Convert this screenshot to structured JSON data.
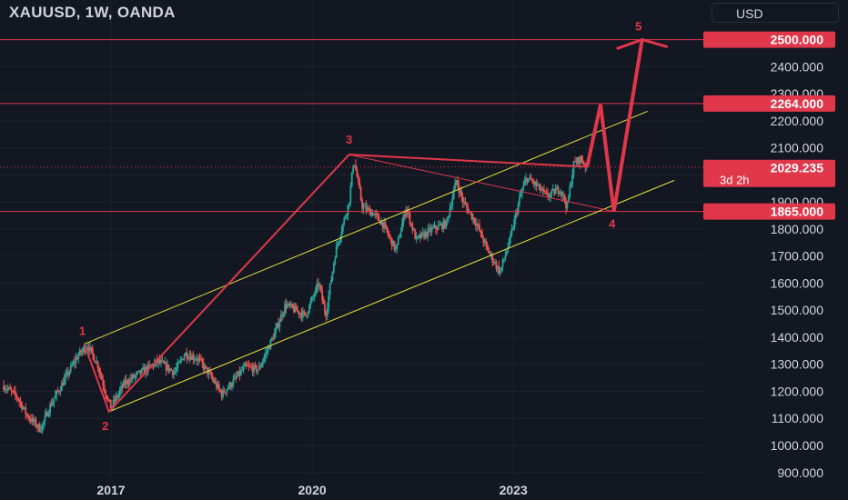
{
  "header": {
    "title": "XAUUSD, 1W, OANDA",
    "currency": "USD"
  },
  "colors": {
    "background": "#131722",
    "grid": "#1e222d",
    "up": "#26a69a",
    "down": "#ef5350",
    "wave": "#e0374b",
    "channel": "#e8e23b",
    "level": "#e0374b"
  },
  "chart_data": {
    "type": "candlestick",
    "symbol": "XAUUSD",
    "timeframe": "1W",
    "source": "OANDA",
    "y_axis": {
      "ticks": [
        900,
        1000,
        1100,
        1200,
        1300,
        1400,
        1500,
        1600,
        1700,
        1800,
        1900,
        2000,
        2100,
        2200,
        2300,
        2400
      ],
      "tick_labels": [
        "900.000",
        "1000.000",
        "1100.000",
        "1200.000",
        "1300.000",
        "1400.000",
        "1500.000",
        "1600.000",
        "1700.000",
        "1800.000",
        "1900.000",
        "2000.000",
        "2100.000",
        "2200.000",
        "2300.000",
        "2400.000"
      ],
      "range": [
        860,
        2560
      ],
      "side": "right"
    },
    "x_axis": {
      "range": [
        2015.4,
        2025.2
      ],
      "ticks": [
        2017,
        2020,
        2023
      ],
      "tick_labels": [
        "2017",
        "2020",
        "2023"
      ]
    },
    "price_path": [
      [
        2015.4,
        1220
      ],
      [
        2015.6,
        1180
      ],
      [
        2015.75,
        1110
      ],
      [
        2015.95,
        1060
      ],
      [
        2016.1,
        1150
      ],
      [
        2016.3,
        1240
      ],
      [
        2016.5,
        1330
      ],
      [
        2016.65,
        1370
      ],
      [
        2016.8,
        1300
      ],
      [
        2016.95,
        1170
      ],
      [
        2017.0,
        1140
      ],
      [
        2017.2,
        1230
      ],
      [
        2017.45,
        1270
      ],
      [
        2017.7,
        1310
      ],
      [
        2017.95,
        1270
      ],
      [
        2018.1,
        1340
      ],
      [
        2018.3,
        1320
      ],
      [
        2018.5,
        1250
      ],
      [
        2018.65,
        1190
      ],
      [
        2018.8,
        1230
      ],
      [
        2019.0,
        1290
      ],
      [
        2019.2,
        1280
      ],
      [
        2019.45,
        1420
      ],
      [
        2019.6,
        1520
      ],
      [
        2019.9,
        1480
      ],
      [
        2020.1,
        1600
      ],
      [
        2020.2,
        1480
      ],
      [
        2020.35,
        1720
      ],
      [
        2020.55,
        1900
      ],
      [
        2020.62,
        2060
      ],
      [
        2020.75,
        1880
      ],
      [
        2020.9,
        1860
      ],
      [
        2021.05,
        1820
      ],
      [
        2021.25,
        1720
      ],
      [
        2021.4,
        1880
      ],
      [
        2021.55,
        1760
      ],
      [
        2021.8,
        1800
      ],
      [
        2022.0,
        1820
      ],
      [
        2022.15,
        1980
      ],
      [
        2022.25,
        1900
      ],
      [
        2022.45,
        1820
      ],
      [
        2022.6,
        1730
      ],
      [
        2022.8,
        1640
      ],
      [
        2022.95,
        1760
      ],
      [
        2023.1,
        1920
      ],
      [
        2023.2,
        1990
      ],
      [
        2023.35,
        1960
      ],
      [
        2023.5,
        1920
      ],
      [
        2023.7,
        1950
      ],
      [
        2023.8,
        1880
      ],
      [
        2023.9,
        2040
      ],
      [
        2024.0,
        2060
      ],
      [
        2024.1,
        2030
      ]
    ],
    "waves": [
      {
        "label": "1",
        "x": 2016.6,
        "y": 1375
      },
      {
        "label": "2",
        "x": 2016.97,
        "y": 1125
      },
      {
        "label": "3",
        "x": 2020.55,
        "y": 2075
      },
      {
        "label": "",
        "x": 2024.1,
        "y": 2030
      },
      {
        "label": "",
        "x": 2024.3,
        "y": 2260
      },
      {
        "label": "4",
        "x": 2024.5,
        "y": 1865
      },
      {
        "label": "5",
        "x": 2024.92,
        "y": 2500
      }
    ],
    "channel_upper": [
      [
        2016.6,
        1375
      ],
      [
        2025.0,
        2235
      ]
    ],
    "channel_lower": [
      [
        2016.97,
        1125
      ],
      [
        2025.4,
        1980
      ]
    ],
    "triangle_line": [
      [
        2020.55,
        2075
      ],
      [
        2024.5,
        1865
      ]
    ],
    "levels": [
      {
        "value": 2500,
        "label": "2500.000"
      },
      {
        "value": 2264,
        "label": "2264.000"
      },
      {
        "value": 1865,
        "label": "1865.000"
      }
    ],
    "current_price": {
      "value": 2029.235,
      "label": "2029.235",
      "countdown": "3d 2h"
    }
  }
}
